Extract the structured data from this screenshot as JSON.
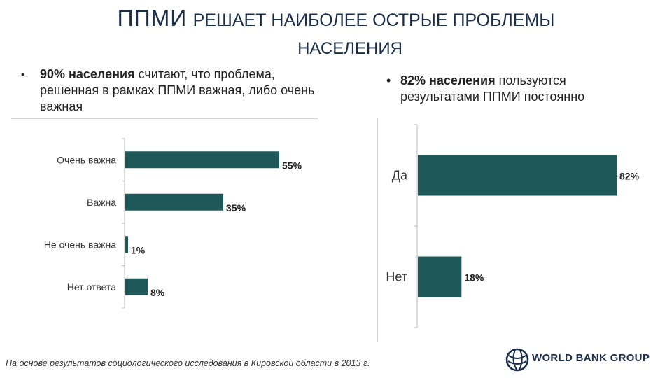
{
  "title": {
    "part1": "ППМИ",
    "part2": "РЕШАЕТ НАИБОЛЕЕ ОСТРЫЕ ПРОБЛЕМЫ",
    "line2": "НАСЕЛЕНИЯ"
  },
  "left_bullet": {
    "bold": "90% населения",
    "rest": " считают, что проблема, решенная в рамках ППМИ важная, либо очень важная"
  },
  "right_bullet": {
    "bullet": "•",
    "bold": "82% населения",
    "rest": " пользуются результатами ППМИ постоянно"
  },
  "chart_data": [
    {
      "type": "bar",
      "orientation": "horizontal",
      "categories": [
        "Очень важна",
        "Важна",
        "Не очень важна",
        "Нет ответа"
      ],
      "values": [
        55,
        35,
        1,
        8
      ],
      "data_labels": [
        "55%",
        "35%",
        "1%",
        "8%"
      ],
      "xlim": [
        0,
        55
      ],
      "color": "#1f5858"
    },
    {
      "type": "bar",
      "orientation": "horizontal",
      "categories": [
        "Да",
        "Нет"
      ],
      "values": [
        82,
        18
      ],
      "data_labels": [
        "82%",
        "18%"
      ],
      "xlim": [
        0,
        82
      ],
      "color": "#1f5858"
    }
  ],
  "footnote": "На основе результатов социологического исследования в Кировской области в 2013 г.",
  "logo": {
    "text": "WORLD BANK GROUP",
    "icon": "globe-icon"
  }
}
